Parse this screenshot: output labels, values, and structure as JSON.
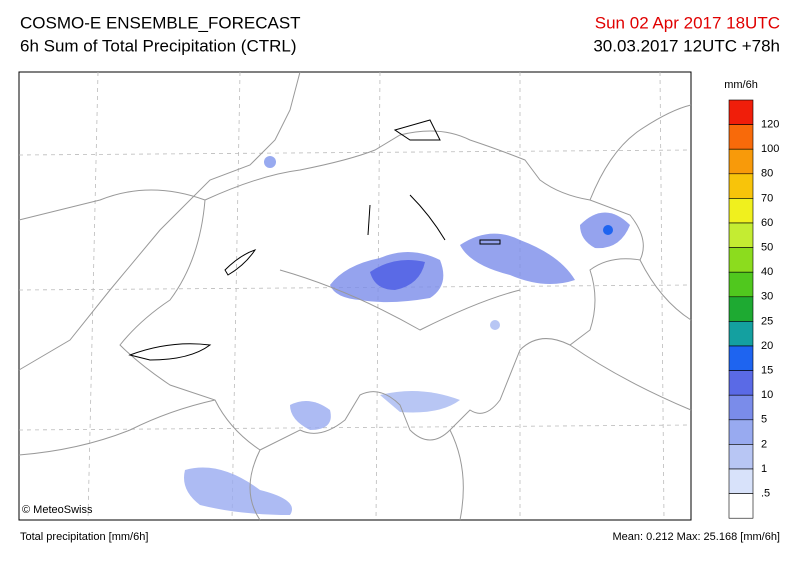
{
  "header": {
    "title": "COSMO-E ENSEMBLE_FORECAST",
    "subtitle": "6h Sum of Total Precipitation (CTRL)",
    "valid_time": "Sun 02 Apr 2017 18UTC",
    "run_time": "30.03.2017 12UTC +78h"
  },
  "map": {
    "copyright": "© MeteoSwiss"
  },
  "colorbar": {
    "unit": "mm/6h",
    "labels": [
      "120",
      "100",
      "80",
      "70",
      "60",
      "50",
      "40",
      "30",
      "25",
      "20",
      "15",
      "10",
      "5",
      "2",
      "1",
      ".5"
    ],
    "colors": [
      "#f01e0a",
      "#f86a0a",
      "#f89a0a",
      "#f8c40a",
      "#f0f01e",
      "#c4ec32",
      "#8cdc1e",
      "#50c81e",
      "#1eaa32",
      "#14a0a0",
      "#1e64f0",
      "#5a6ae6",
      "#7a8cea",
      "#98aaf0",
      "#b8c6f4",
      "#d8e2fa",
      "#ffffff"
    ]
  },
  "footer": {
    "left": "Total precipitation [mm/6h]",
    "right": "Mean:  0.212 Max: 25.168 [mm/6h]"
  }
}
